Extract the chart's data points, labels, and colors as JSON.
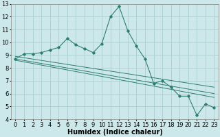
{
  "xlabel": "Humidex (Indice chaleur)",
  "bg_color": "#cce8ea",
  "grid_color": "#aacdd0",
  "line_color": "#2d7d6e",
  "xlim": [
    -0.5,
    23.5
  ],
  "ylim": [
    4,
    13
  ],
  "xticks": [
    0,
    1,
    2,
    3,
    4,
    5,
    6,
    7,
    8,
    9,
    10,
    11,
    12,
    13,
    14,
    15,
    16,
    17,
    18,
    19,
    20,
    21,
    22,
    23
  ],
  "yticks": [
    4,
    5,
    6,
    7,
    8,
    9,
    10,
    11,
    12,
    13
  ],
  "main_x": [
    0,
    1,
    2,
    3,
    4,
    5,
    6,
    7,
    8,
    9,
    10,
    11,
    12,
    13,
    14,
    15,
    16,
    17,
    18,
    19,
    20,
    21,
    22,
    23
  ],
  "main_y": [
    8.7,
    9.1,
    9.1,
    9.2,
    9.4,
    9.6,
    10.3,
    9.8,
    9.5,
    9.2,
    9.9,
    12.0,
    12.8,
    10.9,
    9.7,
    8.7,
    6.8,
    7.0,
    6.5,
    5.8,
    5.8,
    4.3,
    5.2,
    4.9
  ],
  "trend1_y_start": 8.9,
  "trend1_y_end": 6.5,
  "trend2_y_start": 8.7,
  "trend2_y_end": 6.0,
  "trend3_y_start": 8.6,
  "trend3_y_end": 5.7,
  "xlabel_fontsize": 7,
  "tick_fontsize": 6
}
